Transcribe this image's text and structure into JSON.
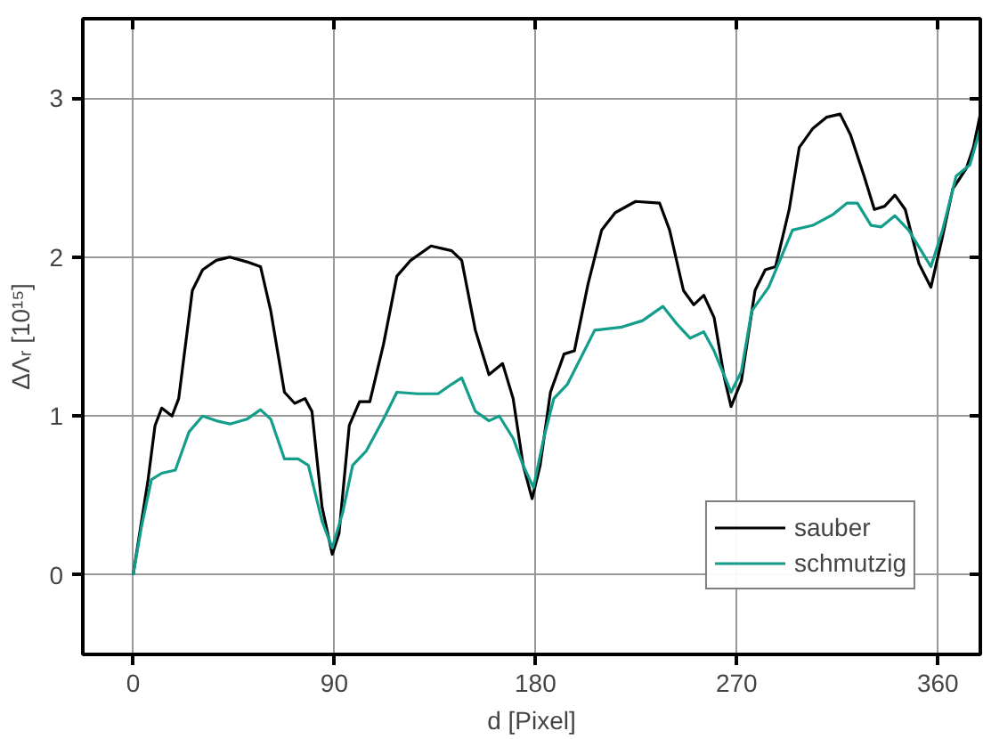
{
  "chart_data": {
    "type": "line",
    "xlabel": "d [Pixel]",
    "ylabel": "ΔΛᵣ [10¹⁵]",
    "xlim": [
      -22.5,
      379
    ],
    "ylim": [
      -0.5,
      3.5
    ],
    "xticks": [
      0,
      90,
      180,
      270,
      360
    ],
    "yticks": [
      0,
      1,
      2,
      3
    ],
    "grid": true,
    "legend": "bottom right",
    "line_style": "solid",
    "series": [
      {
        "name": "sauber",
        "color": "#000000",
        "x": [
          0,
          6.7,
          9.8,
          12.8,
          17.4,
          20.4,
          26.5,
          31.1,
          37.2,
          43.3,
          50.9,
          57,
          61.6,
          67.7,
          72.3,
          76.9,
          80,
          84.5,
          89.1,
          92.1,
          96.7,
          101.3,
          105.9,
          112,
          118,
          124.2,
          133.3,
          142.5,
          147,
          153.1,
          159.2,
          165.3,
          170,
          174.5,
          178.5,
          182.1,
          186.7,
          192.8,
          197.4,
          203.5,
          209.6,
          215.7,
          224.8,
          235.5,
          240,
          246.2,
          250.8,
          255.3,
          259.9,
          264.5,
          267.5,
          272.1,
          278.2,
          282.8,
          287.4,
          293.5,
          298,
          304.1,
          310.2,
          316.3,
          320.9,
          327,
          331.6,
          336.2,
          340.8,
          345.4,
          351.5,
          356.9,
          362.1,
          366.7,
          372.8,
          375.9,
          379
        ],
        "values": [
          0,
          0.6,
          0.94,
          1.05,
          1.0,
          1.11,
          1.79,
          1.92,
          1.98,
          2.0,
          1.97,
          1.94,
          1.66,
          1.15,
          1.08,
          1.11,
          1.03,
          0.43,
          0.13,
          0.26,
          0.94,
          1.09,
          1.09,
          1.45,
          1.88,
          1.98,
          2.07,
          2.04,
          1.98,
          1.54,
          1.26,
          1.33,
          1.11,
          0.69,
          0.48,
          0.69,
          1.15,
          1.39,
          1.41,
          1.83,
          2.17,
          2.28,
          2.35,
          2.34,
          2.17,
          1.79,
          1.7,
          1.76,
          1.62,
          1.24,
          1.06,
          1.22,
          1.79,
          1.92,
          1.94,
          2.3,
          2.69,
          2.81,
          2.88,
          2.9,
          2.77,
          2.51,
          2.3,
          2.32,
          2.39,
          2.3,
          1.96,
          1.81,
          2.13,
          2.43,
          2.56,
          2.69,
          2.9
        ]
      },
      {
        "name": "schmutzig",
        "color": "#129e8a",
        "x": [
          0,
          3.7,
          8.2,
          12.8,
          18.9,
          25,
          31.1,
          37.2,
          43.3,
          50.9,
          57,
          61.6,
          67.7,
          73.8,
          78.4,
          84.5,
          89.1,
          93.7,
          98.2,
          104.3,
          112,
          118,
          127.2,
          136.4,
          142.5,
          147,
          153.1,
          159.2,
          163.8,
          170,
          174.5,
          179.1,
          183.7,
          188.2,
          194.3,
          200.4,
          206.5,
          218.7,
          227.9,
          237,
          243.2,
          249.2,
          255.3,
          259.9,
          267.5,
          272.1,
          276.7,
          284.3,
          295,
          304.1,
          313.3,
          319.4,
          324,
          330.1,
          334.7,
          340.8,
          346.9,
          353,
          356.9,
          362.1,
          368.2,
          374.3,
          379
        ],
        "values": [
          0,
          0.3,
          0.6,
          0.64,
          0.66,
          0.9,
          1.0,
          0.97,
          0.95,
          0.98,
          1.04,
          0.98,
          0.73,
          0.73,
          0.69,
          0.34,
          0.17,
          0.39,
          0.69,
          0.78,
          0.98,
          1.15,
          1.14,
          1.14,
          1.2,
          1.24,
          1.03,
          0.97,
          1.0,
          0.86,
          0.69,
          0.55,
          0.86,
          1.11,
          1.2,
          1.37,
          1.54,
          1.56,
          1.6,
          1.69,
          1.58,
          1.49,
          1.53,
          1.41,
          1.15,
          1.28,
          1.66,
          1.81,
          2.17,
          2.2,
          2.27,
          2.34,
          2.34,
          2.2,
          2.19,
          2.26,
          2.17,
          2.03,
          1.94,
          2.17,
          2.51,
          2.58,
          2.81
        ]
      }
    ]
  }
}
